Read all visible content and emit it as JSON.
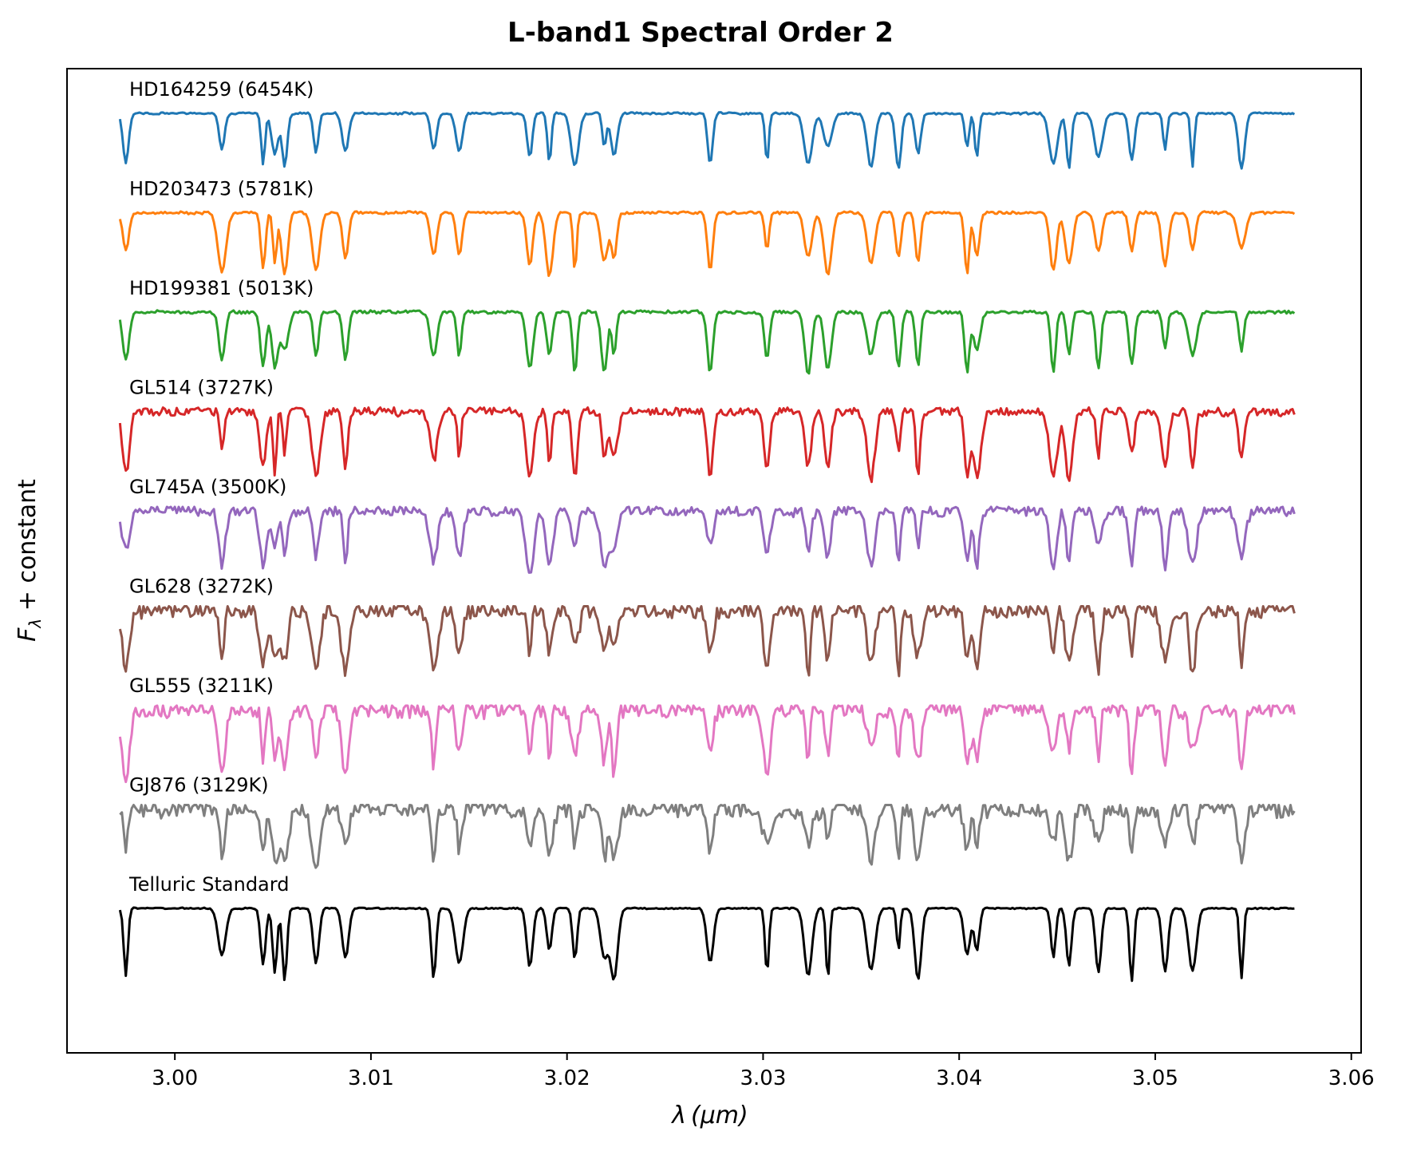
{
  "chart_data": {
    "type": "line",
    "title": "L-band1 Spectral Order 2",
    "xlabel": "λ (μm)",
    "ylabel": "F_λ + constant",
    "xlabel_parts": {
      "symbol": "λ",
      "unit": "(μm)"
    },
    "ylabel_parts": {
      "base": "F",
      "sub": "λ",
      "rest": " + constant"
    },
    "xlim": [
      2.9945,
      3.0605
    ],
    "x_ticks": [
      3.0,
      3.01,
      3.02,
      3.03,
      3.04,
      3.05,
      3.06
    ],
    "x_tick_labels": [
      "3.00",
      "3.01",
      "3.02",
      "3.03",
      "3.04",
      "3.05",
      "3.06"
    ],
    "y_ticks_shown": false,
    "grid": false,
    "legend": "none",
    "x_range_data": [
      2.9972,
      3.0571
    ],
    "absorption_lines": [
      2.9975,
      3.0024,
      3.0045,
      3.0051,
      3.0056,
      3.0072,
      3.0087,
      3.0132,
      3.0145,
      3.0181,
      3.0191,
      3.0204,
      3.0219,
      3.0224,
      3.0273,
      3.0302,
      3.0323,
      3.0333,
      3.0355,
      3.0369,
      3.0379,
      3.0404,
      3.0409,
      3.0448,
      3.0456,
      3.0471,
      3.0488,
      3.0505,
      3.0519,
      3.0544
    ],
    "series": [
      {
        "name": "HD164259 (6454K)",
        "color": "#1f77b4",
        "depth": 0.72,
        "noise": 0.012
      },
      {
        "name": "HD203473 (5781K)",
        "color": "#ff7f0e",
        "depth": 0.8,
        "noise": 0.015
      },
      {
        "name": "HD199381 (5013K)",
        "color": "#2ca02c",
        "depth": 0.8,
        "noise": 0.018
      },
      {
        "name": "GL514 (3727K)",
        "color": "#d62728",
        "depth": 0.85,
        "noise": 0.05
      },
      {
        "name": "GL745A (3500K)",
        "color": "#9467bd",
        "depth": 0.8,
        "noise": 0.06
      },
      {
        "name": "GL628 (3272K)",
        "color": "#8c564b",
        "depth": 0.85,
        "noise": 0.09
      },
      {
        "name": "GL555 (3211K)",
        "color": "#e377c2",
        "depth": 0.85,
        "noise": 0.09
      },
      {
        "name": "GJ876 (3129K)",
        "color": "#7f7f7f",
        "depth": 0.7,
        "noise": 0.1
      },
      {
        "name": "Telluric Standard",
        "color": "#000000",
        "depth": 0.95,
        "noise": 0.008
      }
    ]
  }
}
